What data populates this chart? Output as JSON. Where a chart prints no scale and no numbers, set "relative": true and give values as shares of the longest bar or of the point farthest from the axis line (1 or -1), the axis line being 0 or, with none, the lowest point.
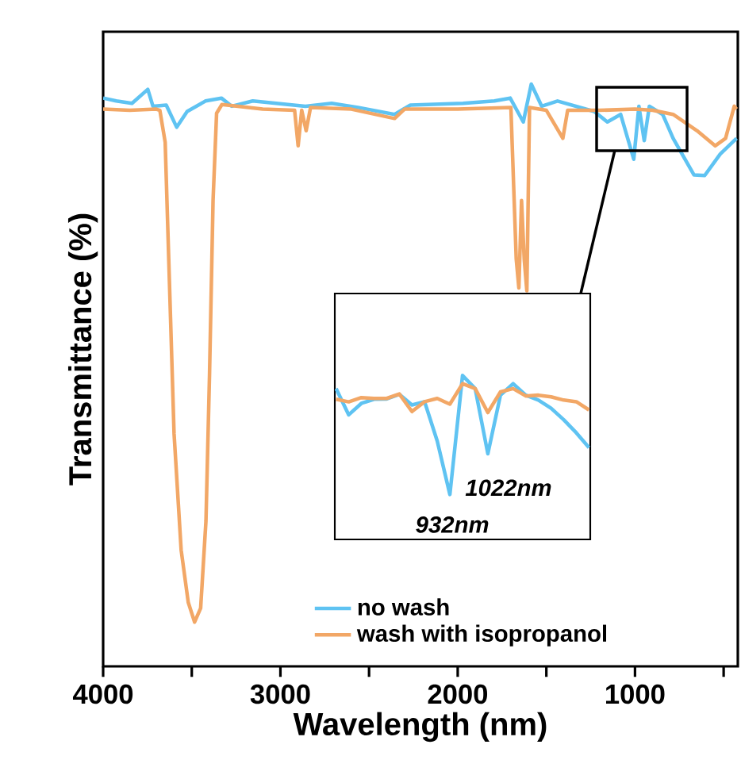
{
  "chart_data": [
    {
      "type": "line",
      "xlabel": "Wavelength (nm)",
      "ylabel": "Transmittance (%)",
      "xlim": [
        4000,
        420
      ],
      "xticks": [
        4000,
        {
          "value": 3500,
          "label": null
        },
        3000,
        {
          "value": 2500,
          "label": null
        },
        2000,
        {
          "value": 1500,
          "label": null
        },
        1000,
        {
          "value": 500,
          "label": null
        }
      ],
      "relative": true,
      "tick_labels": "x",
      "legend": "bottom",
      "series": [
        {
          "name": "no wash",
          "color": "#5fc3f2",
          "x": [
            4000,
            3926,
            3837,
            3748,
            3719,
            3644,
            3585,
            3526,
            3422,
            3333,
            3274,
            3156,
            2859,
            2711,
            2563,
            2356,
            2267,
            1970,
            1793,
            1704,
            1630,
            1585,
            1526,
            1437,
            1230,
            1156,
            1081,
            1007,
            978,
            948,
            919,
            844,
            785,
            667,
            607,
            519,
            427
          ],
          "values": [
            0.976,
            0.971,
            0.967,
            0.991,
            0.962,
            0.964,
            0.926,
            0.953,
            0.971,
            0.976,
            0.962,
            0.971,
            0.962,
            0.967,
            0.96,
            0.948,
            0.964,
            0.967,
            0.971,
            0.976,
            0.935,
            1.0,
            0.962,
            0.971,
            0.953,
            0.935,
            0.948,
            0.871,
            0.962,
            0.903,
            0.962,
            0.948,
            0.907,
            0.844,
            0.843,
            0.88,
            0.907
          ]
        },
        {
          "name": "wash with isopropanol",
          "color": "#f2a766",
          "x": [
            4000,
            3850,
            3700,
            3680,
            3650,
            3620,
            3600,
            3560,
            3520,
            3484,
            3450,
            3420,
            3400,
            3380,
            3360,
            3330,
            3100,
            2920,
            2900,
            2880,
            2855,
            2830,
            2600,
            2356,
            2300,
            2000,
            1700,
            1670,
            1655,
            1640,
            1625,
            1610,
            1595,
            1500,
            1407,
            1380,
            1200,
            1000,
            900,
            785,
            650,
            548,
            489,
            440,
            427
          ],
          "values": [
            0.957,
            0.955,
            0.957,
            0.955,
            0.9,
            0.6,
            0.4,
            0.2,
            0.11,
            0.076,
            0.1,
            0.25,
            0.5,
            0.8,
            0.95,
            0.965,
            0.957,
            0.955,
            0.894,
            0.955,
            0.92,
            0.96,
            0.957,
            0.941,
            0.957,
            0.957,
            0.96,
            0.7,
            0.65,
            0.8,
            0.7,
            0.645,
            0.96,
            0.955,
            0.907,
            0.955,
            0.955,
            0.957,
            0.955,
            0.948,
            0.92,
            0.894,
            0.907,
            0.962,
            0.957
          ]
        }
      ]
    },
    {
      "type": "line",
      "categories": [
        null,
        null,
        null,
        null,
        null,
        null,
        null,
        null,
        null,
        null,
        null,
        null,
        null,
        null,
        null,
        null,
        null,
        null,
        null,
        null,
        null
      ],
      "relative": true,
      "tick_labels": false,
      "annotations": [
        "932nm",
        "1022nm"
      ],
      "series": [
        {
          "color": "#5fc3f2",
          "values": [
            0.92,
            0.76,
            0.83,
            0.855,
            0.857,
            0.885,
            0.82,
            0.84,
            0.6,
            0.274,
            1.0,
            0.92,
            0.523,
            0.88,
            0.95,
            0.88,
            0.85,
            0.8,
            0.73,
            0.65,
            0.56
          ]
        },
        {
          "color": "#f2a766",
          "values": [
            0.855,
            0.839,
            0.865,
            0.86,
            0.86,
            0.887,
            0.78,
            0.84,
            0.86,
            0.825,
            0.95,
            0.92,
            0.774,
            0.9,
            0.92,
            0.875,
            0.88,
            0.87,
            0.85,
            0.84,
            0.79
          ]
        }
      ]
    }
  ]
}
